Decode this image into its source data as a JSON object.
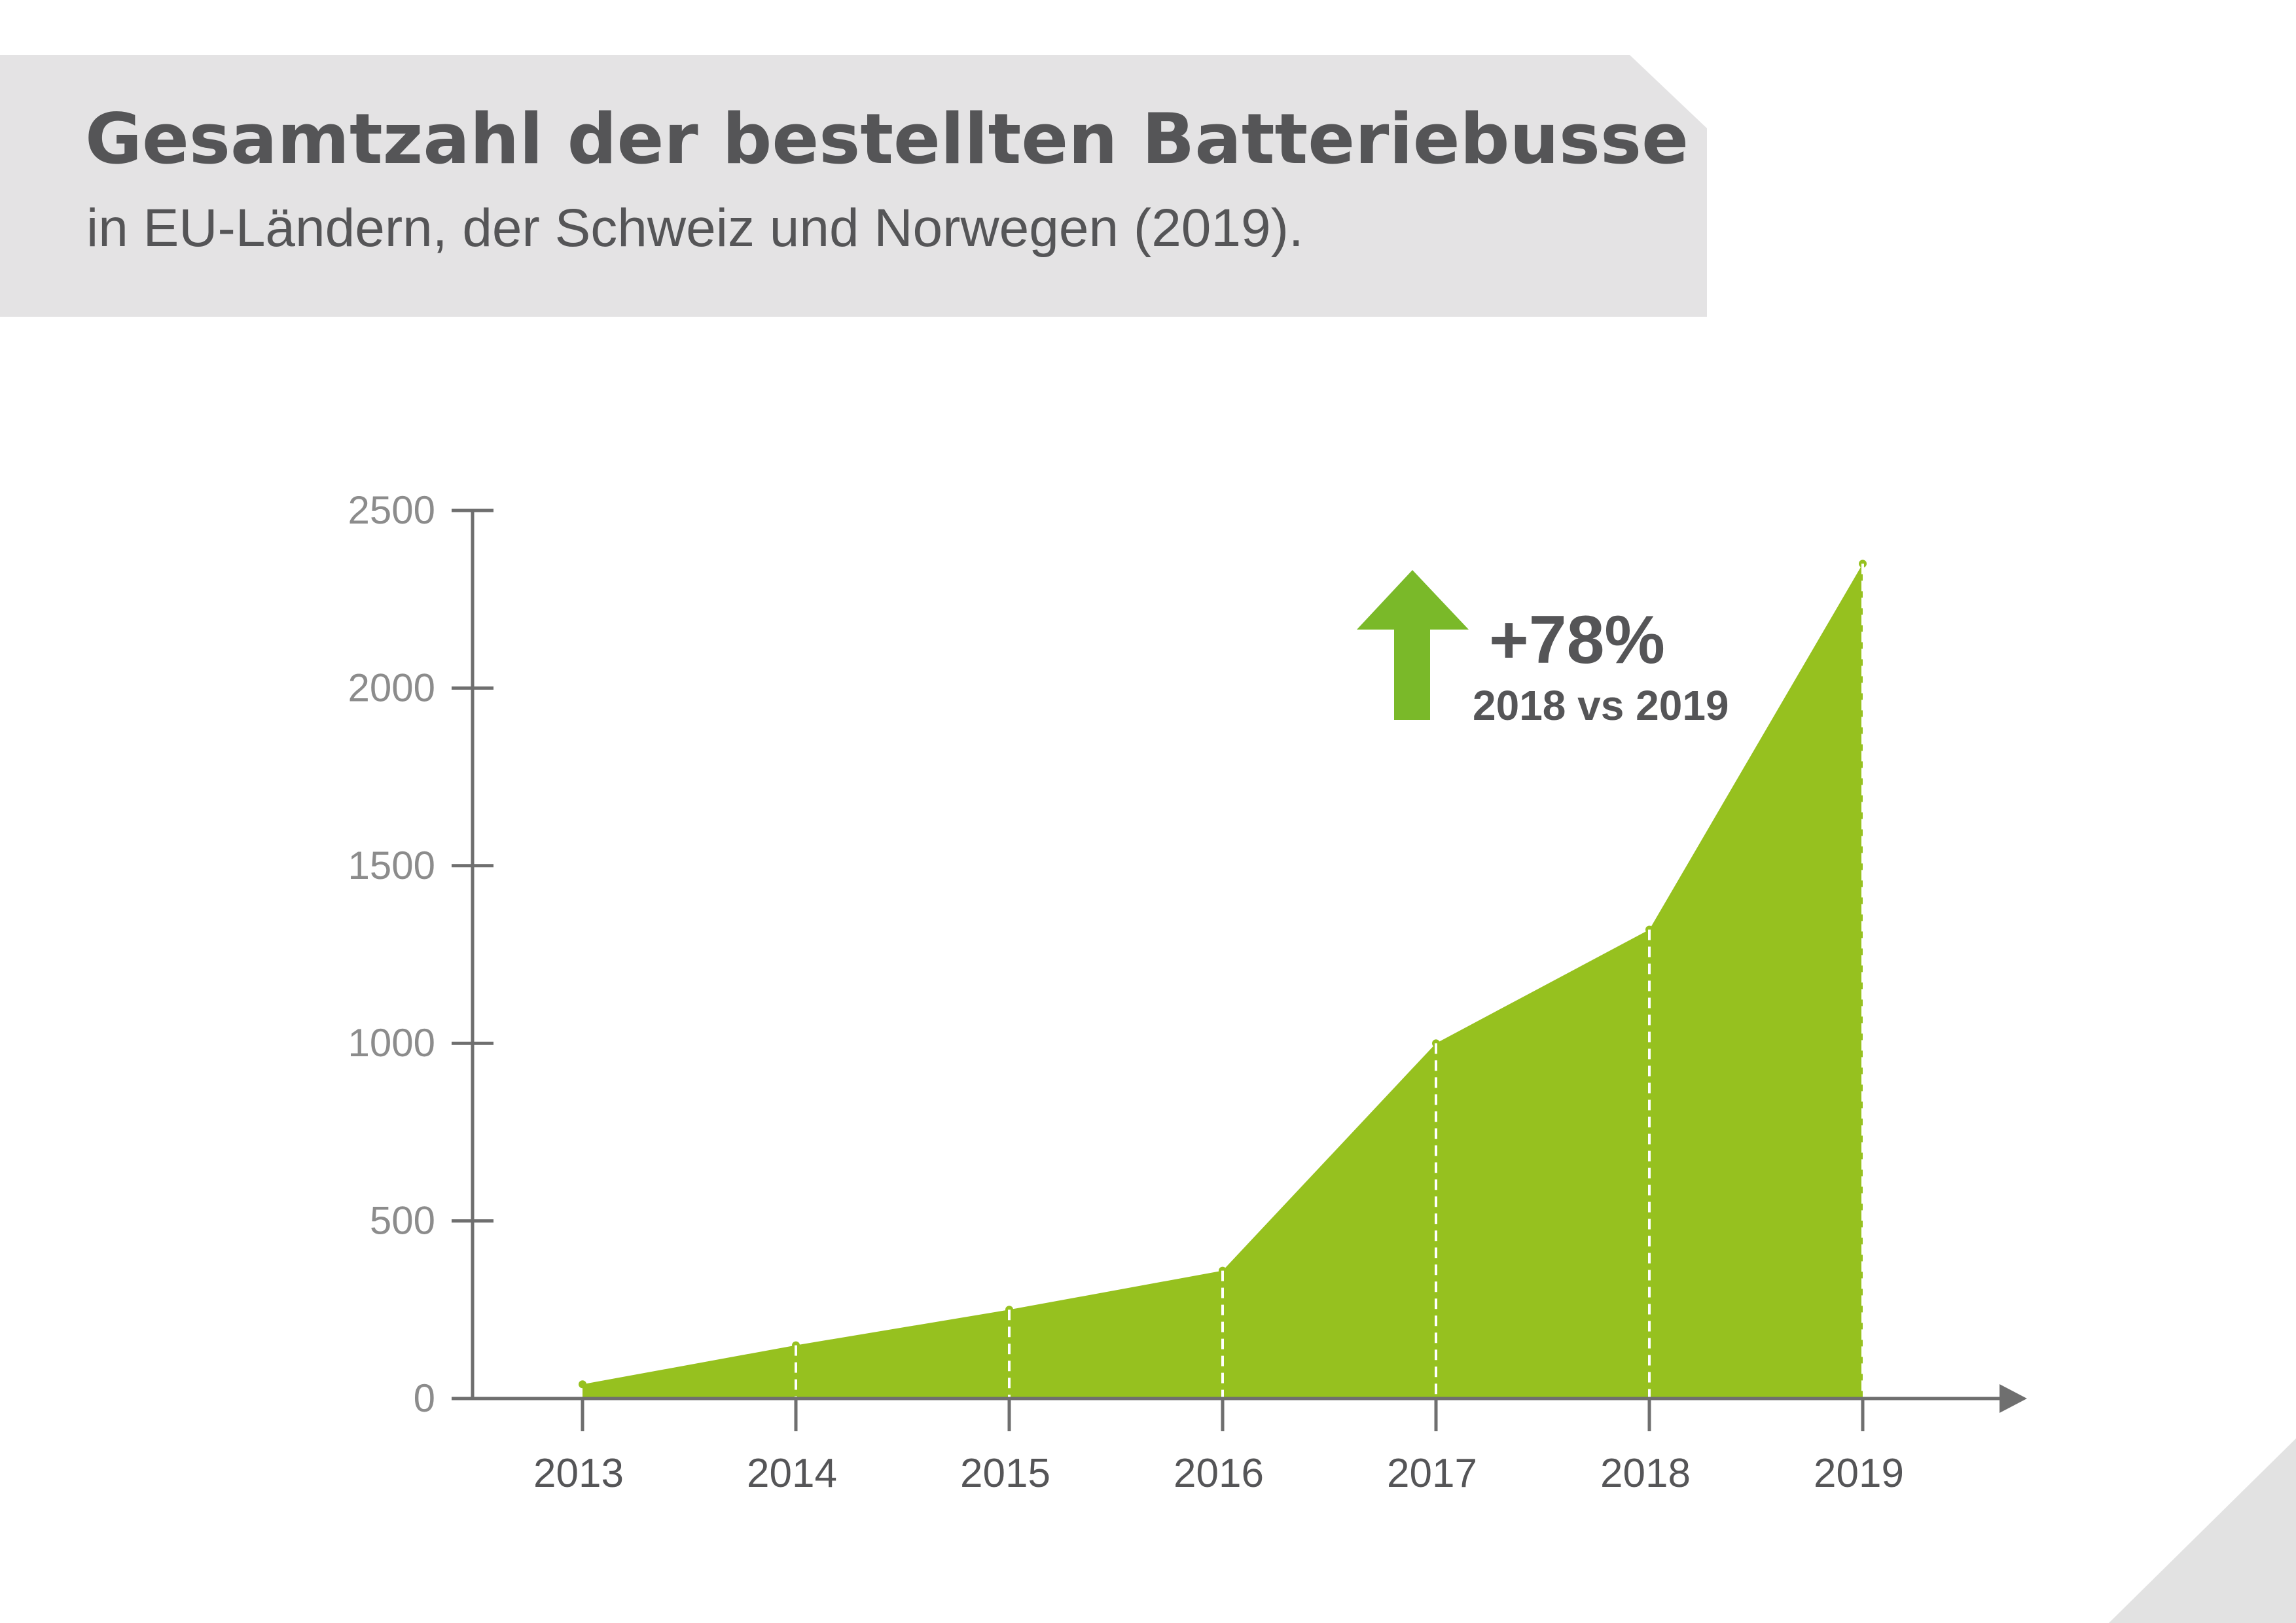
{
  "header": {
    "title": "Gesamtzahl der bestellten Batteriebusse",
    "subtitle": "in EU-Ländern, der Schweiz und Norwegen (2019)."
  },
  "callout": {
    "value": "+78%",
    "label": "2018 vs 2019",
    "icon": "arrow-up-icon",
    "color": "#7ab929"
  },
  "colors": {
    "area": "#96c11f",
    "axis": "#6f6f6f",
    "tick_label": "#8c8c8c",
    "x_label": "#555557",
    "banner": "#e4e3e4",
    "corner": "#e2e2e2",
    "text": "#555557"
  },
  "chart_data": {
    "type": "area",
    "title": "Gesamtzahl der bestellten Batteriebusse",
    "subtitle": "in EU-Ländern, der Schweiz und Norwegen (2019).",
    "xlabel": "",
    "ylabel": "",
    "x": [
      "2013",
      "2014",
      "2015",
      "2016",
      "2017",
      "2018",
      "2019"
    ],
    "values": [
      40,
      150,
      250,
      360,
      1000,
      1320,
      2350
    ],
    "ylim": [
      0,
      2500
    ],
    "yticks": [
      0,
      500,
      1000,
      1500,
      2000,
      2500
    ],
    "grid": false,
    "legend": "none"
  }
}
